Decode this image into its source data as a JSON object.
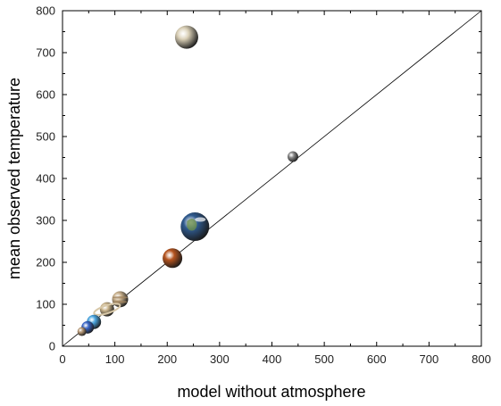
{
  "chart_data": {
    "type": "scatter",
    "title": "",
    "xlabel": "model without atmosphere",
    "ylabel": "mean observed temperature",
    "xlim": [
      0,
      800
    ],
    "ylim": [
      0,
      800
    ],
    "x_ticks": [
      "0",
      "100",
      "200",
      "300",
      "400",
      "500",
      "600",
      "700",
      "800"
    ],
    "y_ticks": [
      "0",
      "100",
      "200",
      "300",
      "400",
      "500",
      "600",
      "700",
      "800"
    ],
    "grid": false,
    "reference_line": {
      "from": [
        0,
        0
      ],
      "to": [
        800,
        800
      ],
      "color": "#000000"
    },
    "points": [
      {
        "name": "venus",
        "x": 237,
        "y": 737,
        "r": 13,
        "color": "#d9cfb6"
      },
      {
        "name": "mercury",
        "x": 440,
        "y": 452,
        "r": 6,
        "color": "#8a8a8a"
      },
      {
        "name": "earth",
        "x": 253,
        "y": 285,
        "r": 16,
        "color": "#2f5a8e"
      },
      {
        "name": "mars",
        "x": 210,
        "y": 210,
        "r": 11,
        "color": "#b5541f"
      },
      {
        "name": "jupiter",
        "x": 110,
        "y": 112,
        "r": 9,
        "color": "#c8b08c"
      },
      {
        "name": "saturn",
        "x": 85,
        "y": 88,
        "r": 8,
        "color": "#c9b38a"
      },
      {
        "name": "uranus",
        "x": 60,
        "y": 58,
        "r": 8,
        "color": "#4aa6e0"
      },
      {
        "name": "neptune",
        "x": 48,
        "y": 45,
        "r": 7,
        "color": "#3a67c8"
      },
      {
        "name": "pluto",
        "x": 37,
        "y": 35,
        "r": 5,
        "color": "#b89a78"
      }
    ]
  }
}
